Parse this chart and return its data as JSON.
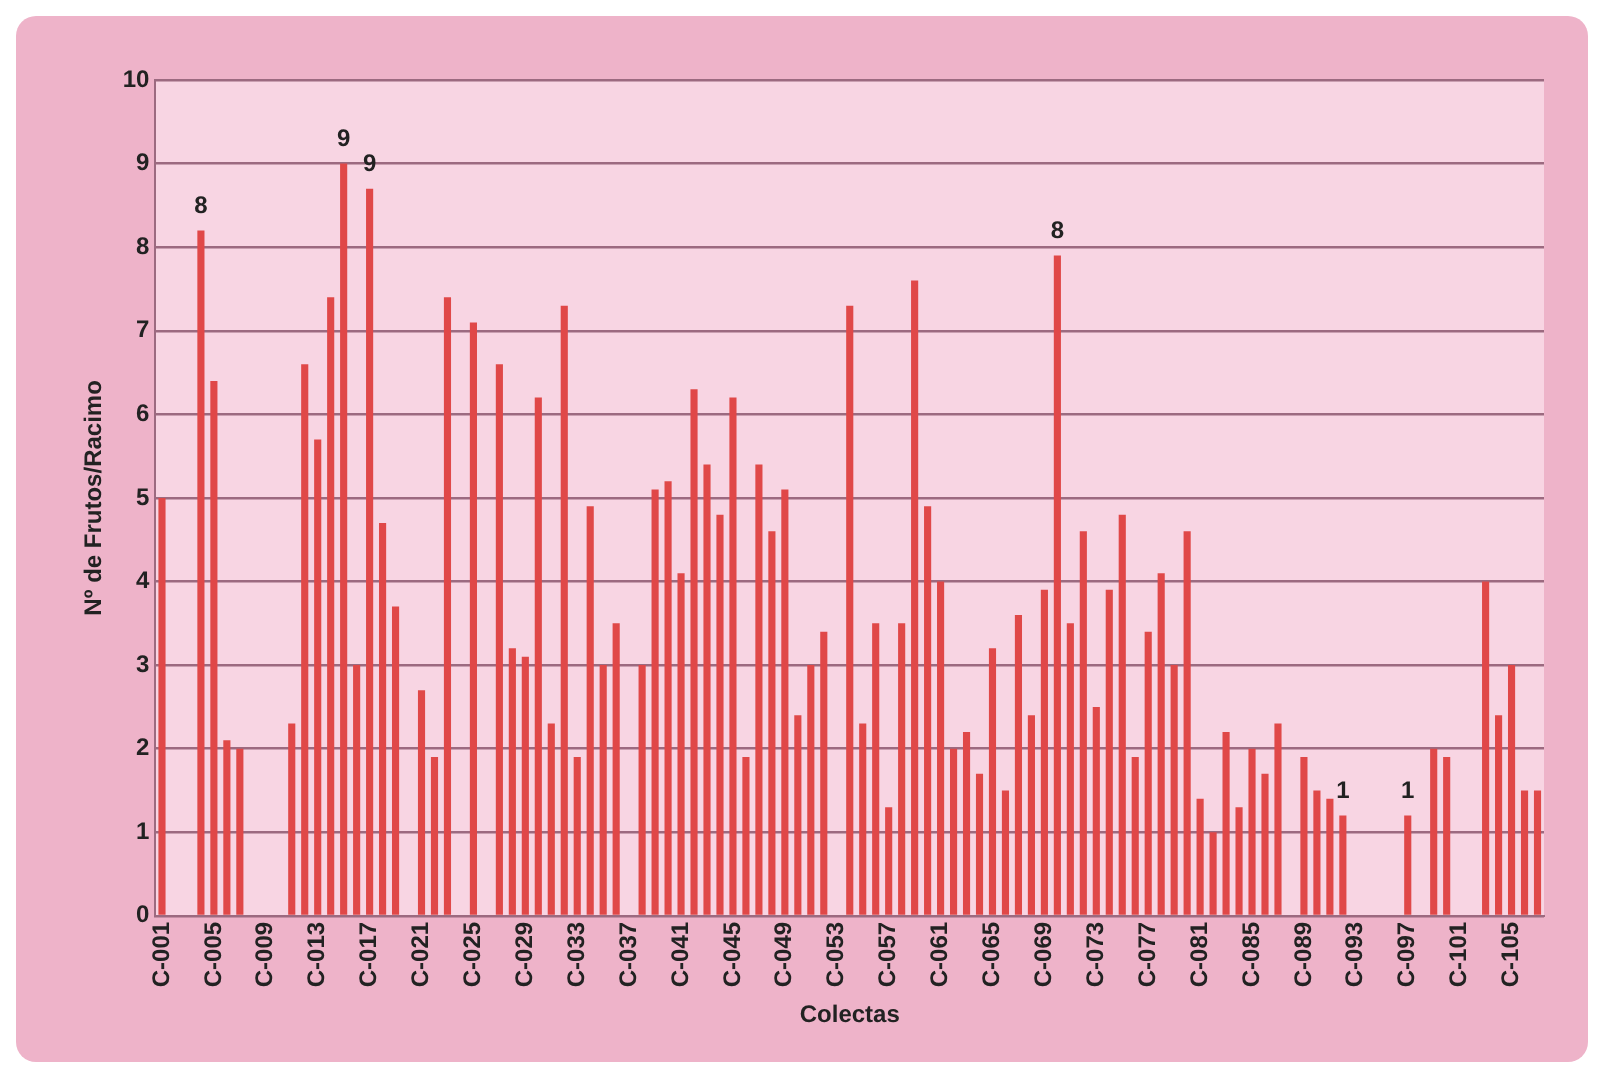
{
  "chart_data": {
    "type": "bar",
    "xlabel": "Colectas",
    "ylabel": "Nº de Frutos/Racimo",
    "color": "#e04848",
    "ylim": [
      0,
      10
    ],
    "yticks": [
      0,
      1,
      2,
      3,
      4,
      5,
      6,
      7,
      8,
      9,
      10
    ],
    "grid": "y",
    "categories": [
      "C-001",
      null,
      null,
      null,
      "C-005",
      null,
      null,
      null,
      "C-009",
      null,
      null,
      null,
      "C-013",
      null,
      null,
      null,
      "C-017",
      null,
      null,
      null,
      "C-021",
      null,
      null,
      null,
      "C-025",
      null,
      null,
      null,
      "C-029",
      null,
      null,
      null,
      "C-033",
      null,
      null,
      null,
      "C-037",
      null,
      null,
      null,
      "C-041",
      null,
      null,
      null,
      "C-045",
      null,
      null,
      null,
      "C-049",
      null,
      null,
      null,
      "C-053",
      null,
      null,
      null,
      "C-057",
      null,
      null,
      null,
      "C-061",
      null,
      null,
      null,
      "C-065",
      null,
      null,
      null,
      "C-069",
      null,
      null,
      null,
      "C-073",
      null,
      null,
      null,
      "C-077",
      null,
      null,
      null,
      "C-081",
      null,
      null,
      null,
      "C-085",
      null,
      null,
      null,
      "C-089",
      null,
      null,
      null,
      "C-093",
      null,
      null,
      null,
      "C-097",
      null,
      null,
      null,
      "C-101",
      null,
      null,
      null,
      "C-105",
      null,
      null
    ],
    "values": [
      5.0,
      0,
      0,
      8.2,
      6.4,
      2.1,
      2.0,
      0,
      0,
      0,
      2.3,
      6.6,
      5.7,
      7.4,
      9.0,
      3.0,
      8.7,
      4.7,
      3.7,
      0,
      2.7,
      1.9,
      7.4,
      0,
      7.1,
      0,
      6.6,
      3.2,
      3.1,
      6.2,
      2.3,
      7.3,
      1.9,
      4.9,
      3.0,
      3.5,
      0,
      3.0,
      5.1,
      5.2,
      4.1,
      6.3,
      5.4,
      4.8,
      6.2,
      1.9,
      5.4,
      4.6,
      5.1,
      2.4,
      3.0,
      3.4,
      0,
      7.3,
      2.3,
      3.5,
      1.3,
      3.5,
      7.6,
      4.9,
      4.0,
      2.0,
      2.2,
      1.7,
      3.2,
      1.5,
      3.6,
      2.4,
      3.9,
      7.9,
      3.5,
      4.6,
      2.5,
      3.9,
      4.8,
      1.9,
      3.4,
      4.1,
      3.0,
      4.6,
      1.4,
      1.0,
      2.2,
      1.3,
      2.0,
      1.7,
      2.3,
      0,
      1.9,
      1.5,
      1.4,
      1.2,
      0,
      0,
      0,
      0,
      1.2,
      0,
      2.0,
      1.9,
      0,
      0,
      4.0,
      2.4,
      3.0,
      1.5,
      1.5
    ],
    "value_labels": [
      null,
      null,
      null,
      "8",
      null,
      null,
      null,
      null,
      null,
      null,
      null,
      null,
      null,
      null,
      "9",
      null,
      "9",
      null,
      null,
      null,
      null,
      null,
      null,
      null,
      null,
      null,
      null,
      null,
      null,
      null,
      null,
      null,
      null,
      null,
      null,
      null,
      null,
      null,
      null,
      null,
      null,
      null,
      null,
      null,
      null,
      null,
      null,
      null,
      null,
      null,
      null,
      null,
      null,
      null,
      null,
      null,
      null,
      null,
      null,
      null,
      null,
      null,
      null,
      null,
      null,
      null,
      null,
      null,
      null,
      "8",
      null,
      null,
      null,
      null,
      null,
      null,
      null,
      null,
      null,
      null,
      null,
      null,
      null,
      null,
      null,
      null,
      null,
      null,
      null,
      null,
      null,
      "1",
      null,
      null,
      null,
      null,
      "1",
      null,
      null,
      null,
      null,
      null,
      null,
      null,
      null,
      null,
      null
    ]
  }
}
